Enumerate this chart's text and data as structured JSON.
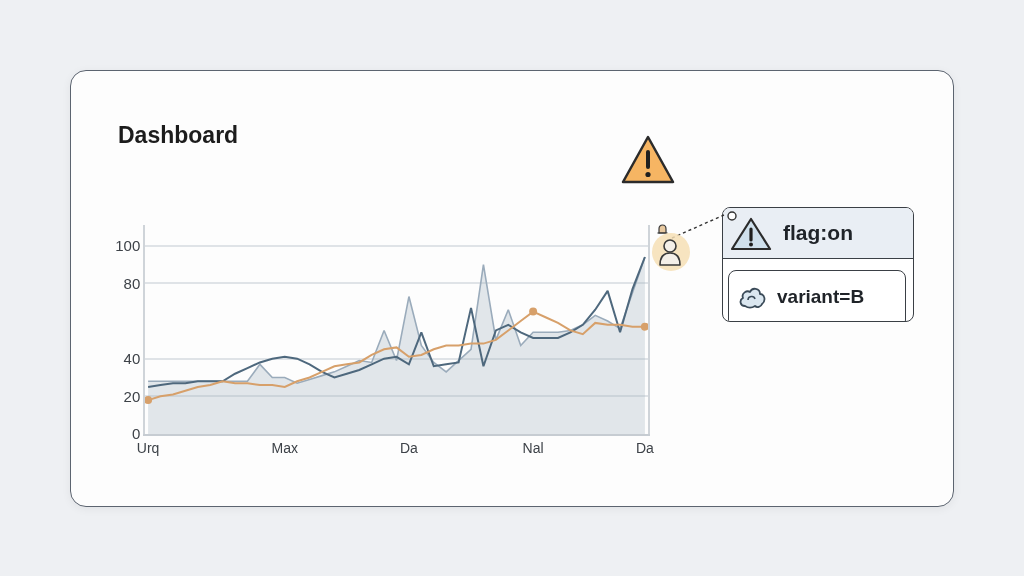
{
  "chart_data": {
    "type": "line",
    "title": "Dashboard",
    "annotations": [
      "flag:on",
      "variant=B"
    ],
    "categories": [
      "Urq",
      null,
      null,
      null,
      null,
      null,
      null,
      null,
      null,
      null,
      null,
      "Max",
      null,
      null,
      null,
      null,
      null,
      null,
      null,
      null,
      null,
      "Da",
      null,
      null,
      null,
      null,
      null,
      null,
      null,
      null,
      null,
      "Nal",
      null,
      null,
      null,
      null,
      null,
      null,
      null,
      null,
      "Da"
    ],
    "ylim": [
      0,
      111
    ],
    "yticks": [
      0,
      20,
      40,
      80,
      100
    ],
    "grid": "y",
    "series": [
      {
        "type": "area",
        "color": "#9aabbb",
        "values": [
          28,
          28,
          28,
          28,
          28,
          28,
          28,
          28,
          28,
          37,
          30,
          30,
          27,
          29,
          31,
          33,
          36,
          39,
          38,
          55,
          39,
          73,
          47,
          38,
          33,
          39,
          45,
          90,
          50,
          66,
          47,
          54,
          54,
          54,
          55,
          58,
          63,
          60,
          56,
          75,
          94
        ]
      },
      {
        "color": "#4e687d",
        "values": [
          25,
          26,
          27,
          27,
          28,
          28,
          28,
          32,
          35,
          38,
          40,
          41,
          40,
          37,
          33,
          30,
          32,
          34,
          37,
          40,
          41,
          37,
          54,
          36,
          37,
          38,
          67,
          36,
          55,
          58,
          54,
          51,
          51,
          51,
          54,
          58,
          66,
          76,
          54,
          77,
          94
        ]
      },
      {
        "color": "#d7a06a",
        "values": [
          18,
          20,
          21,
          23,
          25,
          26,
          28,
          27,
          27,
          26,
          26,
          25,
          28,
          30,
          33,
          36,
          37,
          38,
          42,
          45,
          46,
          41,
          42,
          45,
          47,
          47,
          48,
          48,
          50,
          55,
          60,
          65,
          62,
          59,
          55,
          53,
          59,
          58,
          58,
          57,
          57
        ]
      },
      {
        "type": "scatter",
        "color": "#d7a06a",
        "marker": "circle",
        "values": [
          18,
          null,
          null,
          null,
          null,
          null,
          null,
          null,
          null,
          null,
          null,
          null,
          null,
          null,
          null,
          null,
          null,
          null,
          null,
          null,
          null,
          null,
          null,
          null,
          null,
          null,
          null,
          null,
          null,
          null,
          null,
          65,
          null,
          null,
          null,
          null,
          null,
          null,
          null,
          null,
          57
        ]
      }
    ]
  }
}
